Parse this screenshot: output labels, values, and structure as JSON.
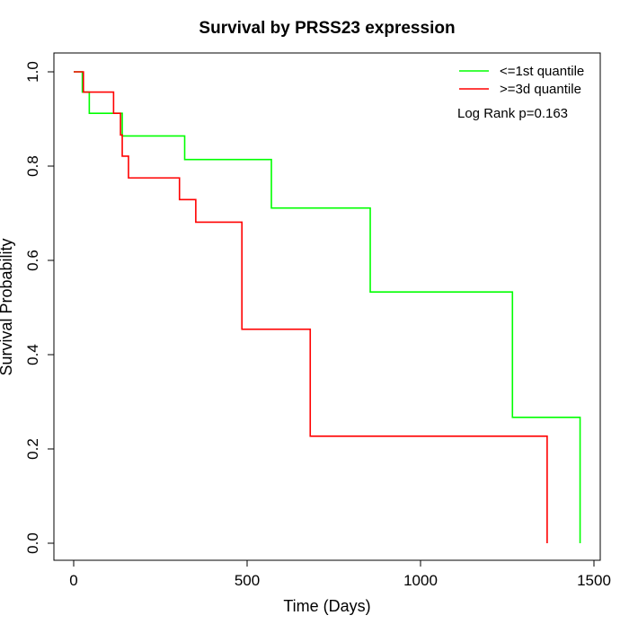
{
  "chart_data": {
    "type": "line",
    "subtype": "step",
    "title": "Survival by PRSS23 expression",
    "xlabel": "Time (Days)",
    "ylabel": "Survival Probability",
    "xlim": [
      0,
      1500
    ],
    "ylim": [
      0,
      1
    ],
    "x_ticks": [
      0,
      500,
      1000,
      1500
    ],
    "x_tick_labels": [
      "0",
      "500",
      "1000",
      "1500"
    ],
    "y_ticks": [
      0,
      0.2,
      0.4,
      0.6,
      0.8,
      1.0
    ],
    "y_tick_labels": [
      "0.0",
      "0.2",
      "0.4",
      "0.6",
      "0.8",
      "1.0"
    ],
    "grid": false,
    "legend_position": "top-right",
    "annotation": "Log Rank p=0.163",
    "series": [
      {
        "name": "<=1st quantile",
        "color": "#00ff00",
        "x": [
          0,
          25,
          45,
          140,
          320,
          570,
          855,
          1265,
          1460
        ],
        "y": [
          1.0,
          0.957,
          0.912,
          0.864,
          0.814,
          0.711,
          0.533,
          0.267,
          0.0
        ]
      },
      {
        "name": ">=3d quantile",
        "color": "#ff0000",
        "x": [
          0,
          28,
          115,
          135,
          140,
          158,
          305,
          352,
          485,
          682,
          1365
        ],
        "y": [
          1.0,
          0.957,
          0.912,
          0.866,
          0.821,
          0.775,
          0.729,
          0.681,
          0.454,
          0.227,
          0.0
        ]
      }
    ]
  }
}
